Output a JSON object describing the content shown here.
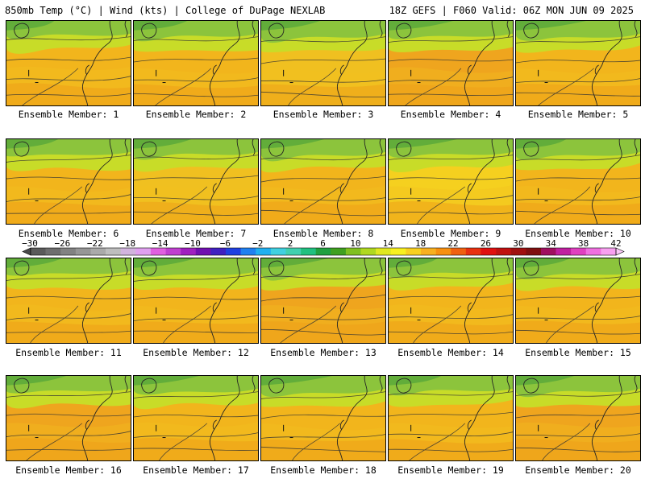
{
  "header": {
    "left": "850mb Temp (°C) | Wind (kts) | College of DuPage NEXLAB",
    "right": "18Z GEFS | F060 Valid: 06Z MON JUN 09 2025"
  },
  "members": [
    {
      "label": "Ensemble Member: 1",
      "tint": "#f2b51c"
    },
    {
      "label": "Ensemble Member: 2",
      "tint": "#f2b51c"
    },
    {
      "label": "Ensemble Member: 3",
      "tint": "#f0c020"
    },
    {
      "label": "Ensemble Member: 4",
      "tint": "#efa51e"
    },
    {
      "label": "Ensemble Member: 5",
      "tint": "#f2b51c"
    },
    {
      "label": "Ensemble Member: 6",
      "tint": "#f2b51c"
    },
    {
      "label": "Ensemble Member: 7",
      "tint": "#f0c020"
    },
    {
      "label": "Ensemble Member: 8",
      "tint": "#f2b51c"
    },
    {
      "label": "Ensemble Member: 9",
      "tint": "#f5d01f"
    },
    {
      "label": "Ensemble Member: 10",
      "tint": "#f2b51c"
    },
    {
      "label": "Ensemble Member: 11",
      "tint": "#f2b51c"
    },
    {
      "label": "Ensemble Member: 12",
      "tint": "#f2b51c"
    },
    {
      "label": "Ensemble Member: 13",
      "tint": "#efa51e"
    },
    {
      "label": "Ensemble Member: 14",
      "tint": "#f2b51c"
    },
    {
      "label": "Ensemble Member: 15",
      "tint": "#f2b51c"
    },
    {
      "label": "Ensemble Member: 16",
      "tint": "#efa51e"
    },
    {
      "label": "Ensemble Member: 17",
      "tint": "#f2b51c"
    },
    {
      "label": "Ensemble Member: 18",
      "tint": "#f2b51c"
    },
    {
      "label": "Ensemble Member: 19",
      "tint": "#f2b51c"
    },
    {
      "label": "Ensemble Member: 20",
      "tint": "#efa51e"
    }
  ],
  "colorbar": {
    "labels": [
      "−30",
      "−26",
      "−22",
      "−18",
      "−14",
      "−10",
      "−6",
      "−2",
      "2",
      "6",
      "10",
      "14",
      "18",
      "22",
      "26",
      "30",
      "34",
      "38",
      "42"
    ],
    "colors": [
      "#5a5a5a",
      "#6e6e6e",
      "#828282",
      "#969696",
      "#aaaaaa",
      "#bebebe",
      "#d2b4de",
      "#e0a0f0",
      "#e060e0",
      "#c040d0",
      "#a020c0",
      "#7010b0",
      "#4020c0",
      "#2040e0",
      "#2080f0",
      "#20b0f0",
      "#40d0e0",
      "#40d0b0",
      "#20c080",
      "#20a040",
      "#40a020",
      "#80c020",
      "#b0d820",
      "#e0e820",
      "#f8f020",
      "#f8d020",
      "#f8b020",
      "#f89010",
      "#f06010",
      "#e83010",
      "#e01010",
      "#c01010",
      "#a01010",
      "#801010",
      "#a01060",
      "#c020a0",
      "#e040c0",
      "#f070e0",
      "#f8a0f0"
    ]
  }
}
